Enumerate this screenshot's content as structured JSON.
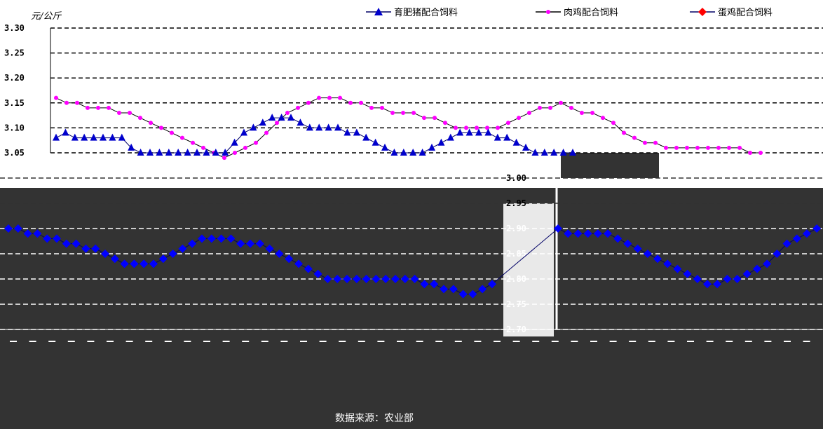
{
  "chart_data": {
    "type": "line",
    "unit_label": "元/公斤",
    "source_note": "数据来源：农业部",
    "y_ticks_top": [
      "3.30",
      "3.25",
      "3.20",
      "3.15",
      "3.10",
      "3.05"
    ],
    "y_ticks_bottom": [
      "3.00",
      "2.95",
      "2.90",
      "2.85",
      "2.80",
      "2.75",
      "2.70"
    ],
    "ylim_top": [
      3.05,
      3.3
    ],
    "ylim_bottom": [
      2.7,
      3.0
    ],
    "grid": true,
    "legend_position": "top",
    "series": [
      {
        "name": "育肥猪配合饲料",
        "color": "#0000cc",
        "marker": "triangle",
        "values": [
          3.08,
          3.09,
          3.08,
          3.08,
          3.08,
          3.08,
          3.08,
          3.08,
          3.06,
          3.05,
          3.04,
          3.04,
          3.04,
          3.03,
          3.03,
          3.03,
          3.03,
          3.04,
          3.05,
          3.07,
          3.09,
          3.1,
          3.11,
          3.12,
          3.12,
          3.12,
          3.11,
          3.1,
          3.1,
          3.1,
          3.1,
          3.09,
          3.09,
          3.08,
          3.07,
          3.06,
          3.05,
          3.04,
          3.04,
          3.05,
          3.06,
          3.07,
          3.08,
          3.09,
          3.09,
          3.09,
          3.09,
          3.08,
          3.08,
          3.07,
          3.06,
          3.05,
          3.04,
          3.03,
          3.03,
          3.03
        ]
      },
      {
        "name": "肉鸡配合饲料",
        "color": "#ff00ff",
        "marker": "circle",
        "values": [
          3.16,
          3.15,
          3.15,
          3.14,
          3.14,
          3.14,
          3.13,
          3.13,
          3.12,
          3.11,
          3.1,
          3.09,
          3.08,
          3.07,
          3.06,
          3.05,
          3.04,
          3.05,
          3.06,
          3.07,
          3.09,
          3.11,
          3.13,
          3.14,
          3.15,
          3.16,
          3.16,
          3.16,
          3.15,
          3.15,
          3.14,
          3.14,
          3.13,
          3.13,
          3.13,
          3.12,
          3.12,
          3.11,
          3.1,
          3.1,
          3.1,
          3.1,
          3.1,
          3.11,
          3.12,
          3.13,
          3.14,
          3.14,
          3.15,
          3.14,
          3.13,
          3.13,
          3.12,
          3.11,
          3.09,
          3.08,
          3.07,
          3.07,
          3.06,
          3.06,
          3.06,
          3.06,
          3.06,
          3.06,
          3.06,
          3.06,
          3.05,
          3.05
        ]
      },
      {
        "name": "蛋鸡配合饲料",
        "color": "#0000ff",
        "marker": "diamond",
        "values": [
          2.9,
          2.9,
          2.89,
          2.89,
          2.88,
          2.88,
          2.87,
          2.87,
          2.86,
          2.86,
          2.85,
          2.84,
          2.83,
          2.83,
          2.83,
          2.83,
          2.84,
          2.85,
          2.86,
          2.87,
          2.88,
          2.88,
          2.88,
          2.88,
          2.87,
          2.87,
          2.87,
          2.86,
          2.85,
          2.84,
          2.83,
          2.82,
          2.81,
          2.8,
          2.8,
          2.8,
          2.8,
          2.8,
          2.8,
          2.8,
          2.8,
          2.8,
          2.8,
          2.79,
          2.79,
          2.78,
          2.78,
          2.77,
          2.77,
          2.78,
          2.79,
          2.9,
          2.89,
          2.89,
          2.89,
          2.89,
          2.89,
          2.88,
          2.87,
          2.86,
          2.85,
          2.84,
          2.83,
          2.82,
          2.81,
          2.8,
          2.79,
          2.79,
          2.8,
          2.8,
          2.81,
          2.82,
          2.83,
          2.85,
          2.87,
          2.88,
          2.89,
          2.9
        ]
      }
    ]
  }
}
